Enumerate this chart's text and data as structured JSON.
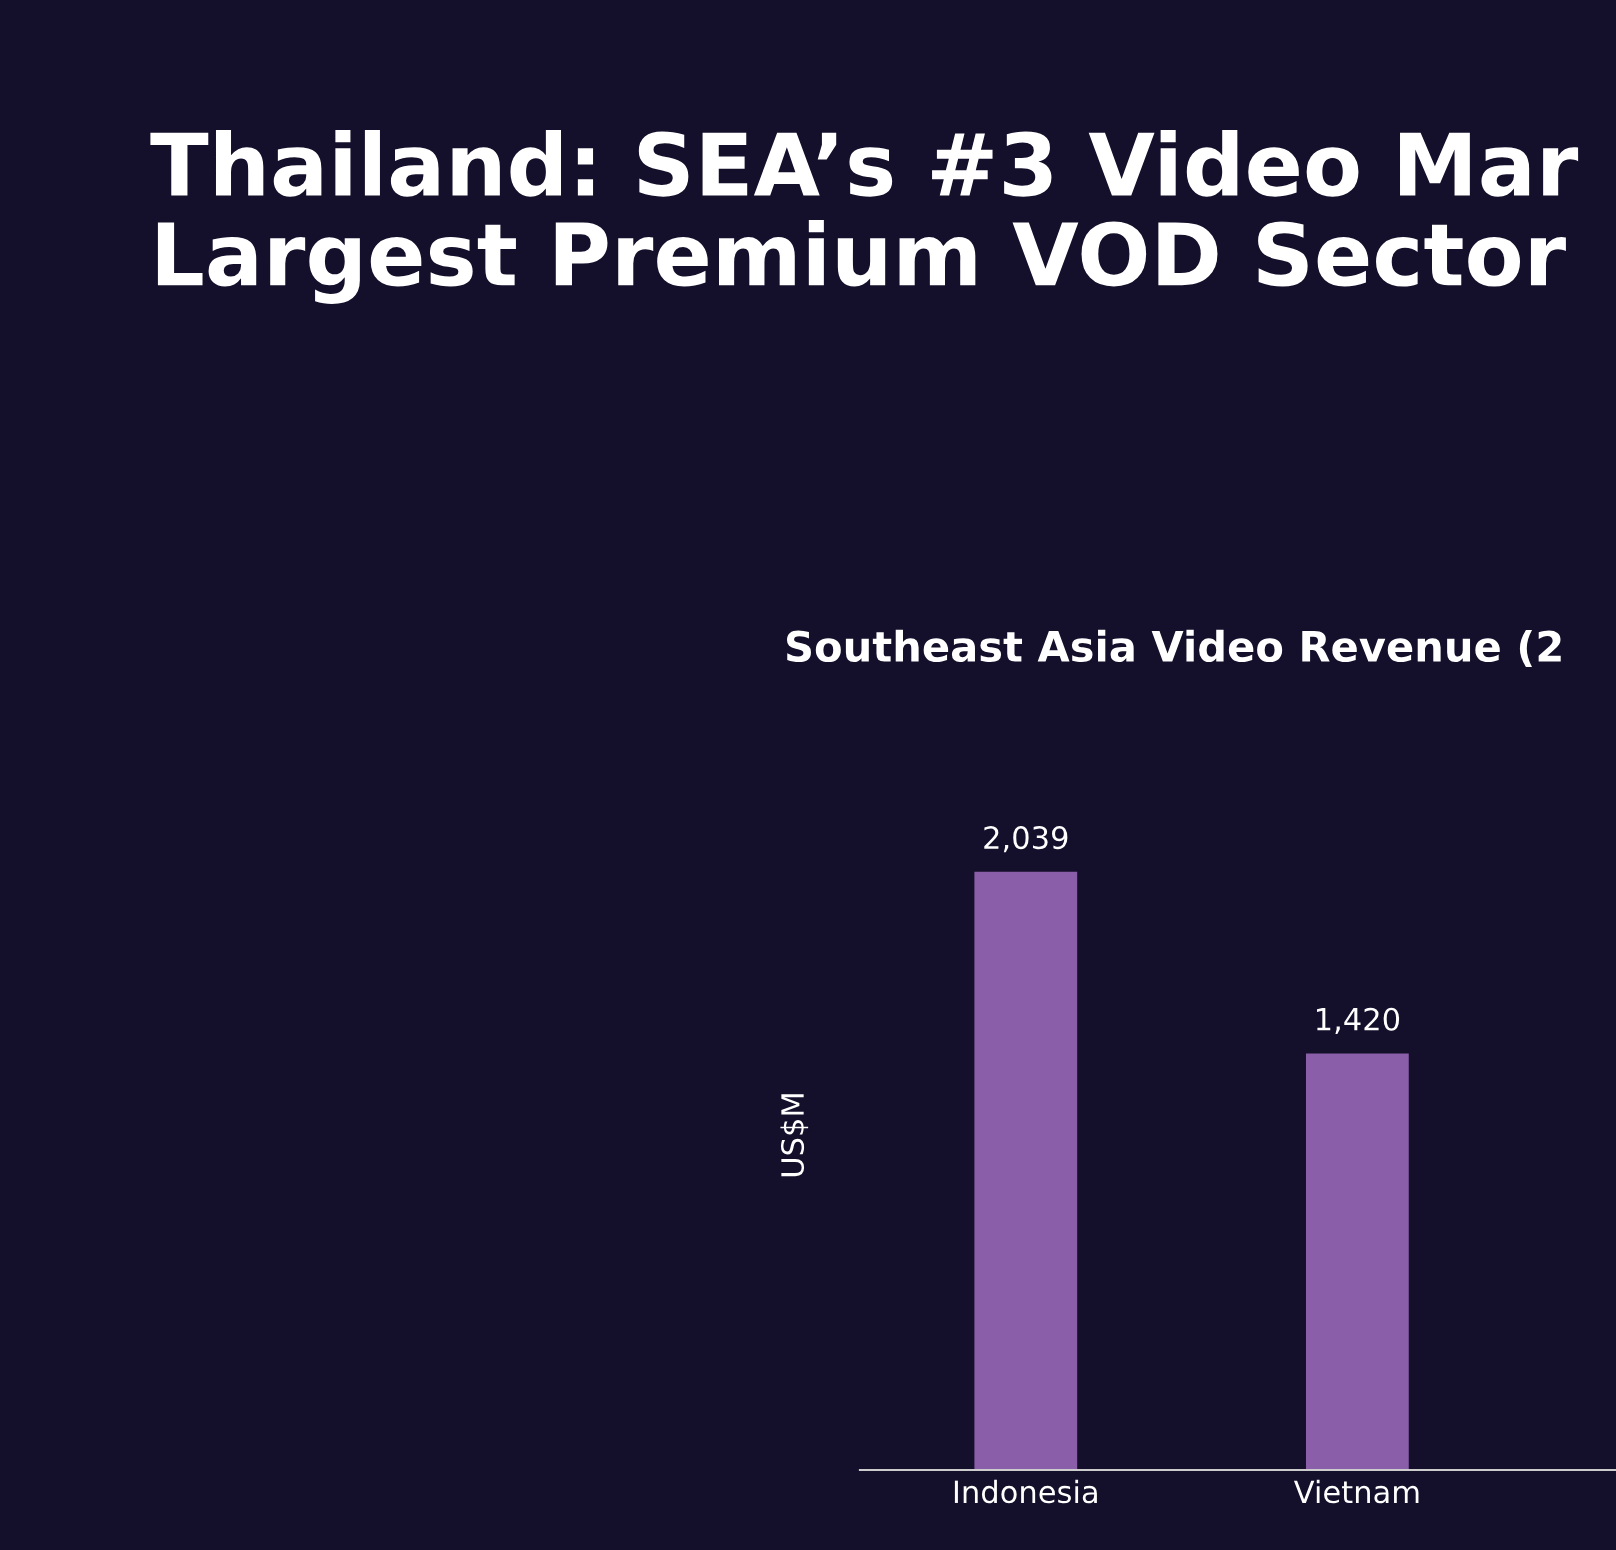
{
  "chart_data": {
    "type": "bar",
    "title": "Thailand: SEA’s #3 Video Mar\nLargest Premium VOD Sector",
    "subtitle": "Southeast Asia Video Revenue (2",
    "ylabel": "US$M",
    "categories": [
      "Indonesia",
      "Vietnam"
    ],
    "values": [
      2039,
      1420
    ],
    "color": "#8a5ea8",
    "value_labels": [
      "2,039",
      "1,420"
    ],
    "tick_labels": "x",
    "grid": false,
    "legend": false
  }
}
